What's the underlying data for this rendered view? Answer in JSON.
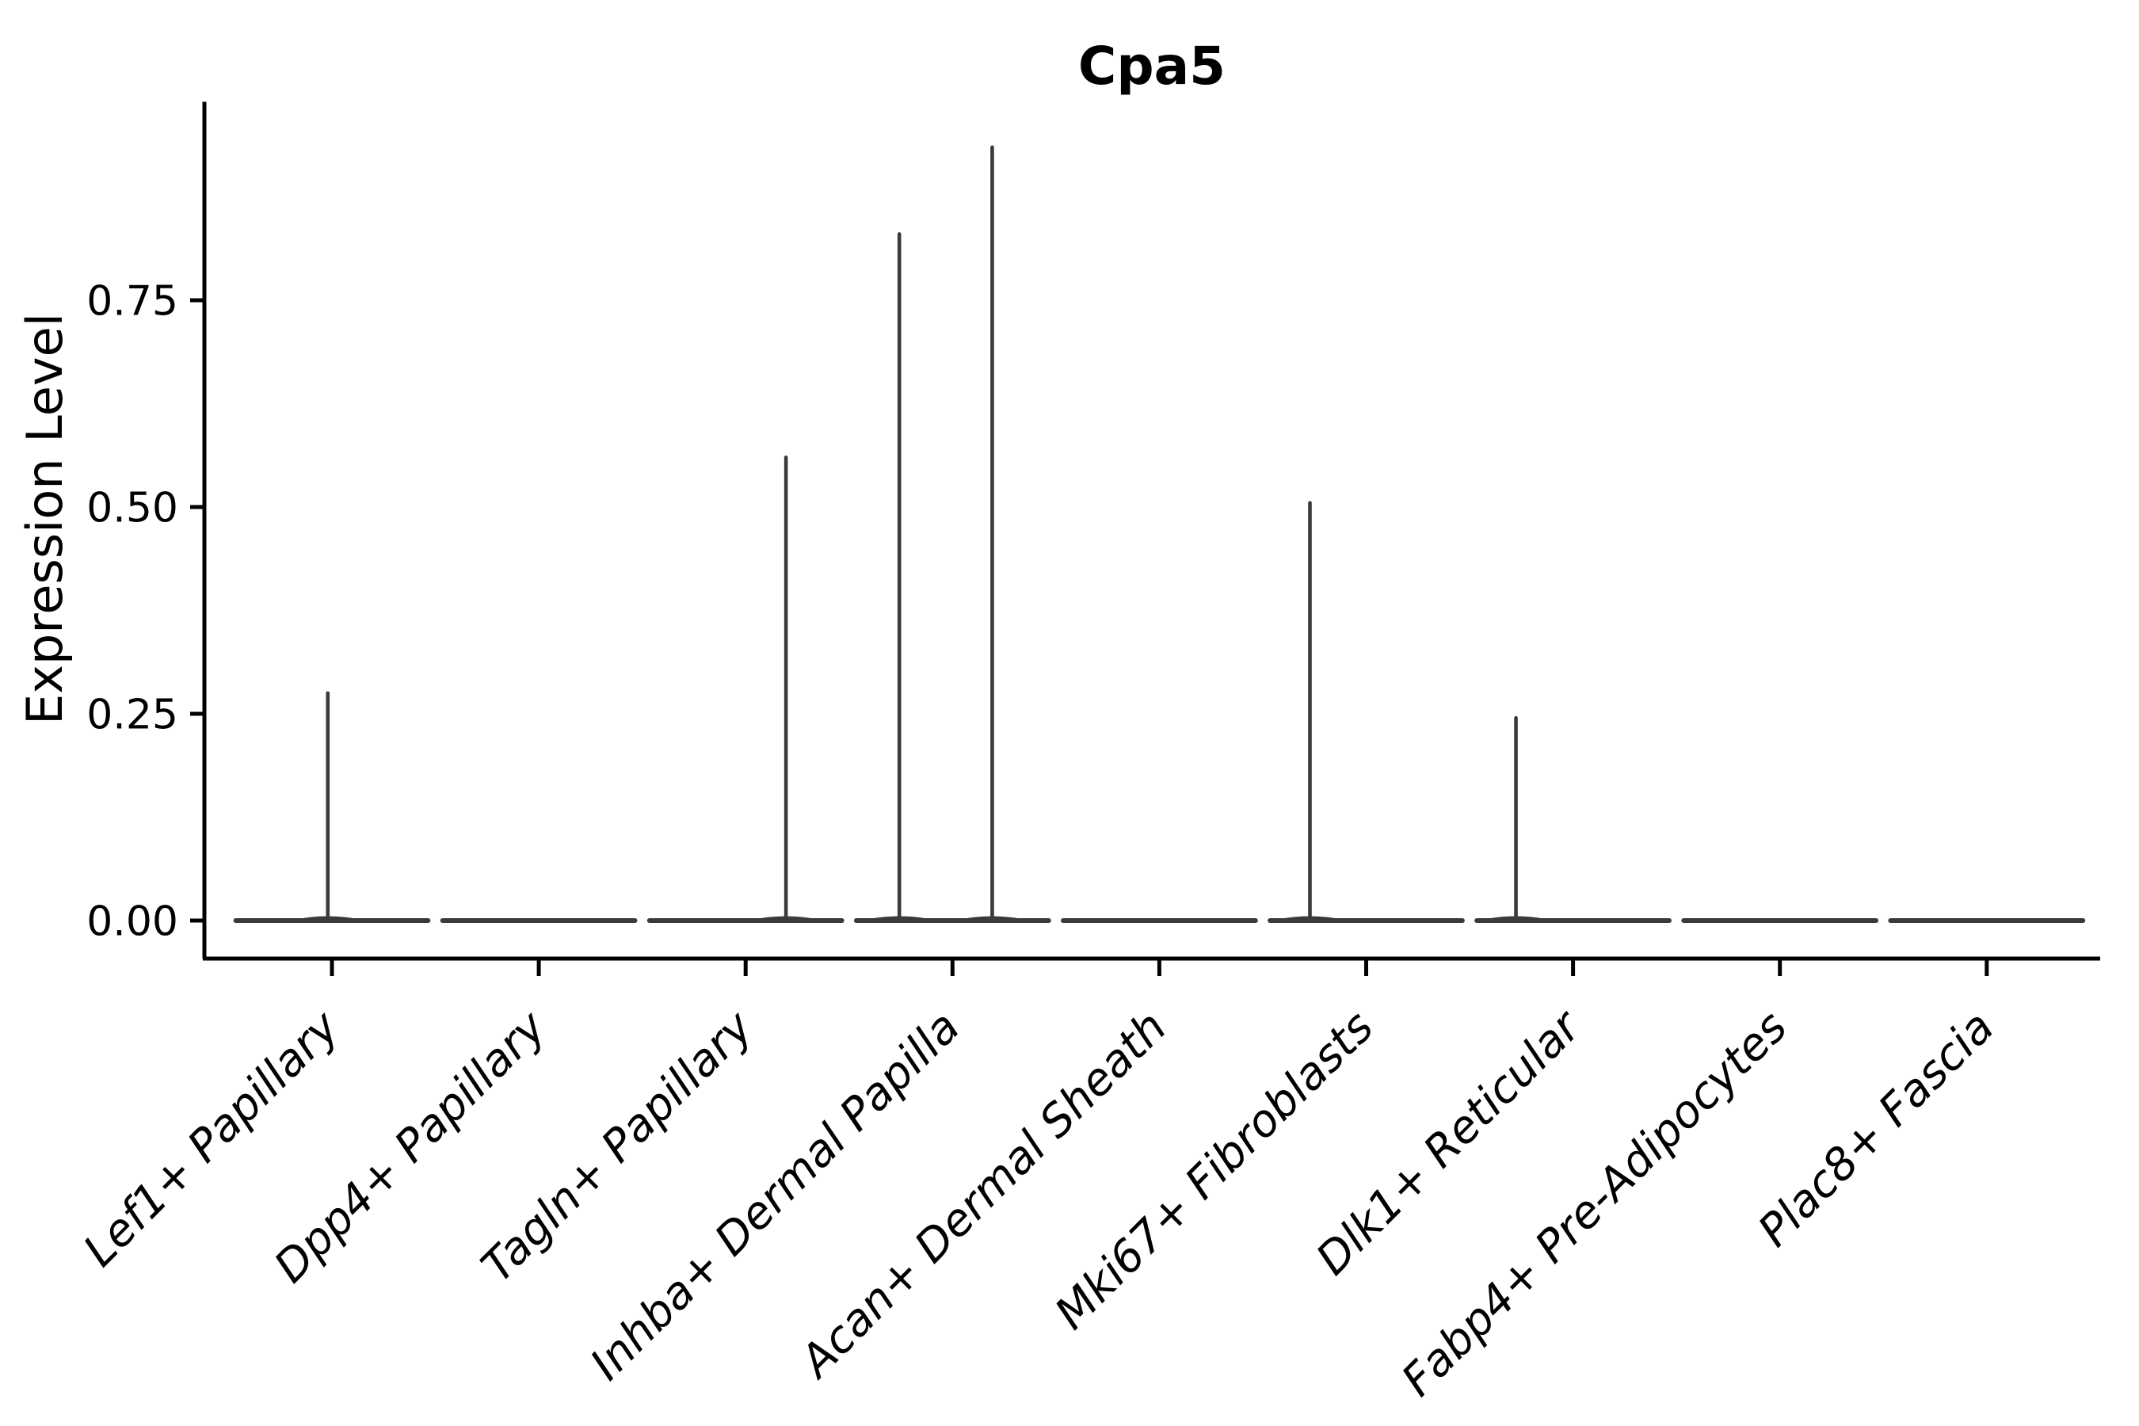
{
  "chart_data": {
    "type": "violin",
    "title": "Cpa5",
    "ylabel": "Expression Level",
    "xlabel": "",
    "ylim": [
      0,
      0.99
    ],
    "grid": false,
    "legend": "none",
    "yticks": [
      {
        "value": 0.0,
        "label": "0.00"
      },
      {
        "value": 0.25,
        "label": "0.25"
      },
      {
        "value": 0.5,
        "label": "0.50"
      },
      {
        "value": 0.75,
        "label": "0.75"
      }
    ],
    "style": {
      "violin_color": "#3a3a3a",
      "axis_color": "#000000",
      "text_color": "#000000",
      "background": "#ffffff"
    },
    "categories": [
      {
        "label": "Lef1+ Papillary",
        "baseline": 0,
        "spikes": [
          {
            "offset_frac": -0.02,
            "value": 0.275
          }
        ]
      },
      {
        "label": "Dpp4+ Papillary",
        "baseline": 0,
        "spikes": []
      },
      {
        "label": "Tagln+ Papillary",
        "baseline": 0,
        "spikes": [
          {
            "offset_frac": 0.195,
            "value": 0.56
          }
        ]
      },
      {
        "label": "Inhba+ Dermal Papilla",
        "baseline": 0,
        "spikes": [
          {
            "offset_frac": -0.257,
            "value": 0.83
          },
          {
            "offset_frac": 0.192,
            "value": 0.935
          }
        ]
      },
      {
        "label": "Acan+ Dermal Sheath",
        "baseline": 0,
        "spikes": []
      },
      {
        "label": "Mki67+ Fibroblasts",
        "baseline": 0,
        "spikes": [
          {
            "offset_frac": -0.272,
            "value": 0.505
          }
        ]
      },
      {
        "label": "Dlk1+ Reticular",
        "baseline": 0,
        "spikes": [
          {
            "offset_frac": -0.276,
            "value": 0.245
          }
        ]
      },
      {
        "label": "Fabp4+ Pre-Adipocytes",
        "baseline": 0,
        "spikes": []
      },
      {
        "label": "Plac8+ Fascia",
        "baseline": 0,
        "spikes": []
      }
    ]
  }
}
